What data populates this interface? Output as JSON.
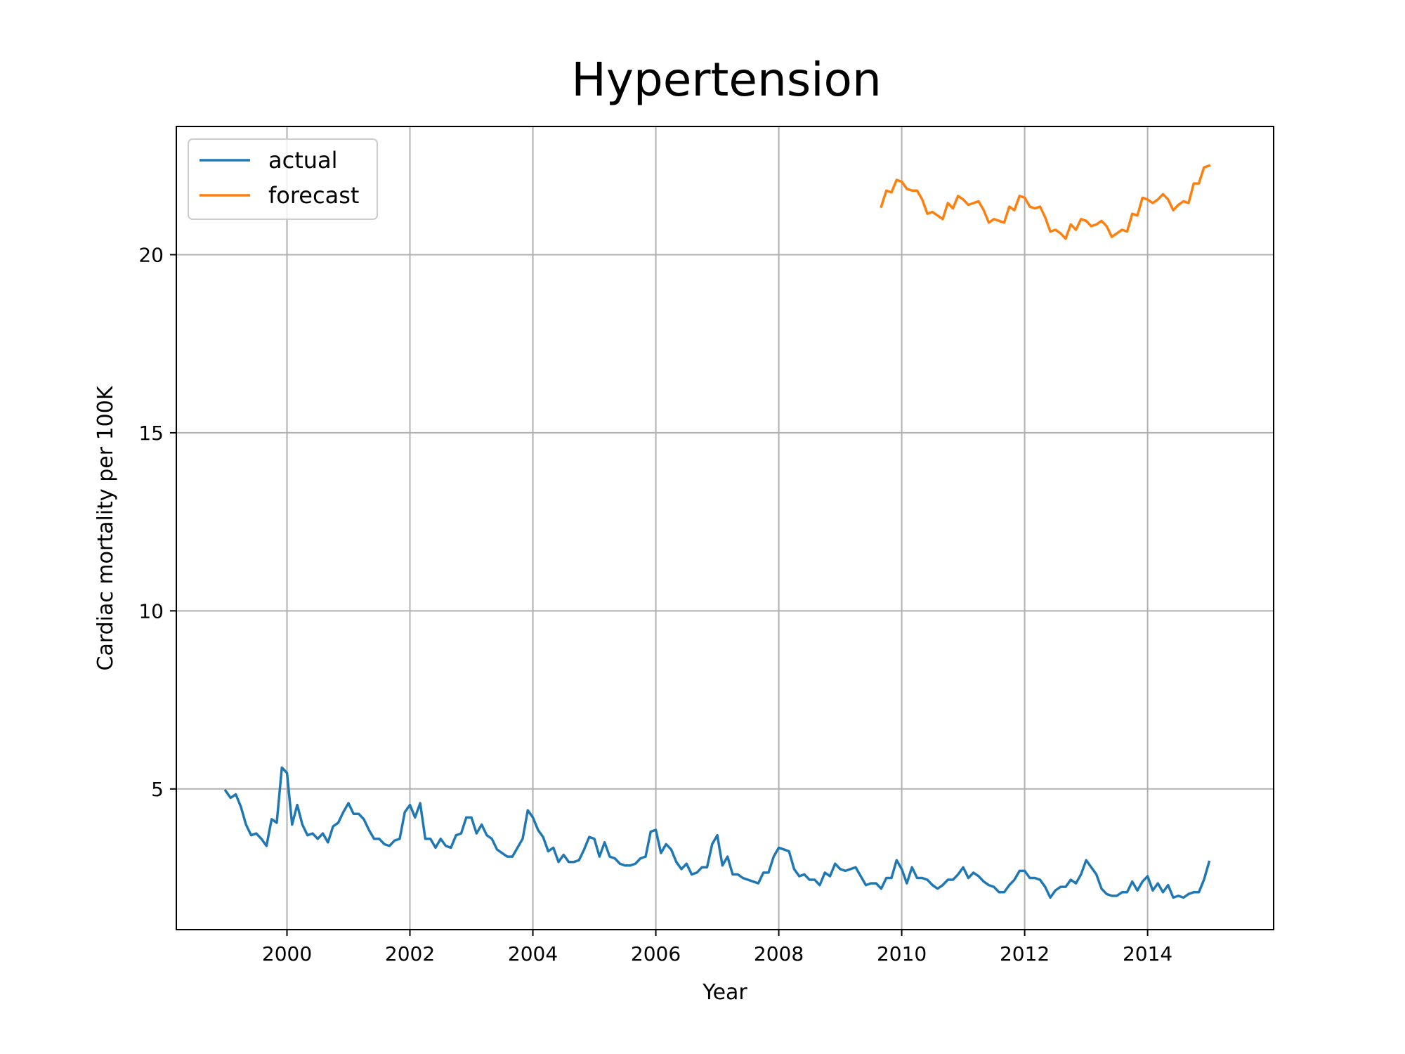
{
  "chart_data": {
    "type": "line",
    "title": "Hypertension",
    "xlabel": "Year",
    "ylabel": "Cardiac mortality per 100K",
    "xlim": [
      1998.2,
      2016.05
    ],
    "ylim": [
      1.05,
      23.6
    ],
    "xticks": [
      2000,
      2002,
      2004,
      2006,
      2008,
      2010,
      2012,
      2014
    ],
    "yticks": [
      5,
      10,
      15,
      20
    ],
    "grid": true,
    "legend_position": "upper-left",
    "series": [
      {
        "name": "actual",
        "color": "#1f77b4",
        "start": 1999.0,
        "step": 0.0833333,
        "values": [
          4.95,
          4.75,
          4.85,
          4.5,
          4.0,
          3.7,
          3.75,
          3.6,
          3.4,
          4.15,
          4.05,
          5.6,
          5.45,
          4.0,
          4.55,
          4.0,
          3.7,
          3.75,
          3.6,
          3.75,
          3.5,
          3.95,
          4.05,
          4.35,
          4.6,
          4.3,
          4.3,
          4.15,
          3.85,
          3.6,
          3.6,
          3.45,
          3.4,
          3.55,
          3.6,
          4.35,
          4.55,
          4.2,
          4.6,
          3.6,
          3.6,
          3.35,
          3.6,
          3.4,
          3.35,
          3.7,
          3.75,
          4.2,
          4.2,
          3.75,
          4.0,
          3.7,
          3.6,
          3.3,
          3.2,
          3.1,
          3.1,
          3.35,
          3.6,
          4.4,
          4.2,
          3.85,
          3.65,
          3.25,
          3.35,
          2.95,
          3.15,
          2.95,
          2.95,
          3.0,
          3.3,
          3.65,
          3.6,
          3.1,
          3.5,
          3.1,
          3.05,
          2.9,
          2.85,
          2.85,
          2.9,
          3.05,
          3.1,
          3.8,
          3.85,
          3.2,
          3.45,
          3.3,
          2.95,
          2.75,
          2.9,
          2.6,
          2.65,
          2.8,
          2.8,
          3.45,
          3.7,
          2.85,
          3.1,
          2.6,
          2.6,
          2.5,
          2.45,
          2.4,
          2.35,
          2.65,
          2.65,
          3.1,
          3.35,
          3.3,
          3.25,
          2.75,
          2.55,
          2.6,
          2.45,
          2.45,
          2.3,
          2.65,
          2.55,
          2.9,
          2.75,
          2.7,
          2.75,
          2.8,
          2.55,
          2.3,
          2.35,
          2.35,
          2.2,
          2.5,
          2.5,
          3.0,
          2.75,
          2.35,
          2.8,
          2.5,
          2.5,
          2.45,
          2.3,
          2.2,
          2.3,
          2.45,
          2.45,
          2.6,
          2.8,
          2.5,
          2.65,
          2.55,
          2.4,
          2.3,
          2.25,
          2.1,
          2.1,
          2.3,
          2.45,
          2.7,
          2.7,
          2.5,
          2.5,
          2.45,
          2.25,
          1.95,
          2.15,
          2.25,
          2.25,
          2.45,
          2.35,
          2.6,
          3.0,
          2.8,
          2.6,
          2.2,
          2.05,
          2.0,
          2.0,
          2.1,
          2.1,
          2.4,
          2.15,
          2.4,
          2.55,
          2.15,
          2.35,
          2.1,
          2.3,
          1.95,
          2.0,
          1.95,
          2.05,
          2.1,
          2.1,
          2.45,
          2.95
        ]
      },
      {
        "name": "forecast",
        "color": "#ff7f0e",
        "start": 2009.6667,
        "step": 0.0833333,
        "values": [
          21.35,
          21.8,
          21.75,
          22.1,
          22.05,
          21.85,
          21.8,
          21.8,
          21.55,
          21.15,
          21.2,
          21.1,
          21.0,
          21.45,
          21.3,
          21.65,
          21.55,
          21.4,
          21.45,
          21.5,
          21.25,
          20.9,
          21.0,
          20.95,
          20.9,
          21.35,
          21.25,
          21.65,
          21.6,
          21.35,
          21.3,
          21.35,
          21.05,
          20.65,
          20.7,
          20.6,
          20.45,
          20.85,
          20.7,
          21.0,
          20.95,
          20.8,
          20.85,
          20.95,
          20.8,
          20.5,
          20.6,
          20.7,
          20.65,
          21.15,
          21.1,
          21.6,
          21.55,
          21.45,
          21.55,
          21.7,
          21.55,
          21.25,
          21.4,
          21.5,
          21.45,
          22.0,
          22.0,
          22.45,
          22.5
        ]
      }
    ]
  }
}
